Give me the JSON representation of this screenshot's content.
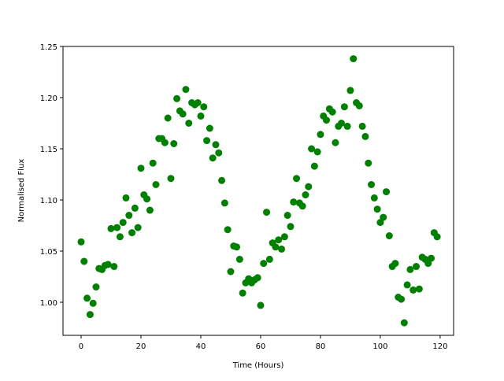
{
  "chart_data": {
    "type": "scatter",
    "xlabel": "Time (Hours)",
    "ylabel": "Normalised Flux",
    "color": "#008000",
    "xlim": [
      -6.05,
      124.5
    ],
    "ylim": [
      0.9677,
      1.25
    ],
    "xticks": [
      0,
      20,
      40,
      60,
      80,
      100,
      120
    ],
    "yticks": [
      {
        "value": 1.0,
        "label": "1.00"
      },
      1.05,
      {
        "value": 1.1,
        "label": "1.10"
      },
      1.15,
      {
        "value": 1.2,
        "label": "1.20"
      },
      1.25
    ],
    "x": [
      0,
      1,
      2,
      3,
      4,
      5,
      6,
      7,
      8,
      9,
      10,
      11,
      12,
      13,
      14,
      15,
      16,
      17,
      18,
      19,
      20,
      21,
      22,
      23,
      24,
      25,
      26,
      27,
      28,
      29,
      30,
      31,
      32,
      33,
      34,
      35,
      36,
      37,
      38,
      39,
      40,
      41,
      42,
      43,
      44,
      45,
      46,
      47,
      48,
      49,
      50,
      51,
      52,
      53,
      54,
      55,
      56,
      57,
      58,
      59,
      60,
      61,
      62,
      63,
      64,
      65,
      66,
      67,
      68,
      69,
      70,
      71,
      72,
      73,
      74,
      75,
      76,
      77,
      78,
      79,
      80,
      81,
      82,
      83,
      84,
      85,
      86,
      87,
      88,
      89,
      90,
      91,
      92,
      93,
      94,
      95,
      96,
      97,
      98,
      99,
      100,
      101,
      102,
      103,
      104,
      105,
      106,
      107,
      108,
      109,
      110,
      111,
      112,
      113,
      114,
      115,
      116,
      117,
      118,
      119
    ],
    "values": [
      1.059,
      1.04,
      1.004,
      0.988,
      0.999,
      1.015,
      1.033,
      1.032,
      1.036,
      1.037,
      1.072,
      1.035,
      1.073,
      1.064,
      1.078,
      1.102,
      1.085,
      1.068,
      1.092,
      1.073,
      1.131,
      1.105,
      1.101,
      1.09,
      1.136,
      1.115,
      1.16,
      1.16,
      1.156,
      1.18,
      1.121,
      1.155,
      1.199,
      1.187,
      1.184,
      1.208,
      1.175,
      1.195,
      1.193,
      1.195,
      1.182,
      1.191,
      1.158,
      1.17,
      1.141,
      1.154,
      1.146,
      1.119,
      1.097,
      1.071,
      1.03,
      1.055,
      1.054,
      1.042,
      1.009,
      1.019,
      1.023,
      1.019,
      1.022,
      1.024,
      0.997,
      1.038,
      1.088,
      1.042,
      1.058,
      1.054,
      1.061,
      1.052,
      1.064,
      1.085,
      1.074,
      1.098,
      1.121,
      1.097,
      1.094,
      1.105,
      1.113,
      1.15,
      1.133,
      1.147,
      1.164,
      1.182,
      1.178,
      1.189,
      1.186,
      1.156,
      1.172,
      1.175,
      1.191,
      1.172,
      1.207,
      1.238,
      1.195,
      1.192,
      1.172,
      1.162,
      1.136,
      1.115,
      1.102,
      1.091,
      1.078,
      1.083,
      1.108,
      1.065,
      1.035,
      1.038,
      1.005,
      1.003,
      0.98,
      1.017,
      1.032,
      1.012,
      1.035,
      1.013,
      1.044,
      1.042,
      1.038,
      1.043,
      1.068,
      1.064
    ]
  }
}
